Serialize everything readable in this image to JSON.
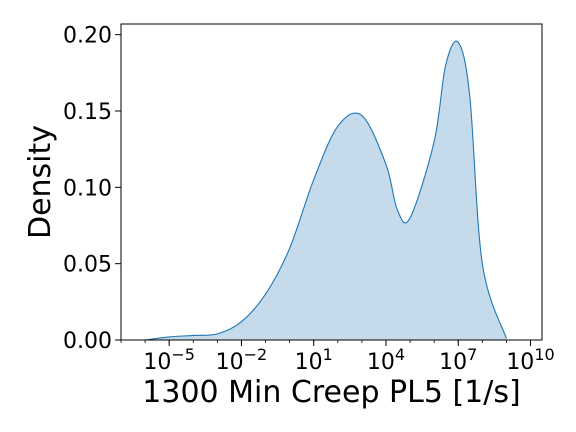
{
  "chart_data": {
    "type": "area",
    "title": "",
    "xlabel": "1300 Min Creep PL5 [1/s]",
    "ylabel": "Density",
    "x_scale": "log10",
    "xlim": [
      1e-07,
      30000000000.0
    ],
    "ylim": [
      0,
      0.207
    ],
    "grid": false,
    "legend": "none",
    "x_ticks": [
      {
        "value": 1e-05,
        "base": "10",
        "exp": "−5"
      },
      {
        "value": 0.01,
        "base": "10",
        "exp": "−2"
      },
      {
        "value": 10,
        "base": "10",
        "exp": "1"
      },
      {
        "value": 10000.0,
        "base": "10",
        "exp": "4"
      },
      {
        "value": 10000000.0,
        "base": "10",
        "exp": "7"
      },
      {
        "value": 10000000000.0,
        "base": "10",
        "exp": "10"
      }
    ],
    "y_ticks": [
      {
        "value": 0.0,
        "label": "0.00"
      },
      {
        "value": 0.05,
        "label": "0.05"
      },
      {
        "value": 0.1,
        "label": "0.10"
      },
      {
        "value": 0.15,
        "label": "0.15"
      },
      {
        "value": 0.2,
        "label": "0.20"
      }
    ],
    "series": [
      {
        "line_color": "#1f77b4",
        "fill_color": "#c5daeb",
        "x": [
          1e-06,
          1e-05,
          0.0001,
          0.001,
          0.01,
          0.1,
          1,
          10,
          100,
          1000,
          10000.0,
          30000.0,
          100000.0,
          1000000.0,
          3000000.0,
          10000000.0,
          30000000.0,
          100000000.0,
          1000000000.0
        ],
        "y": [
          0.0,
          0.002,
          0.003,
          0.004,
          0.012,
          0.03,
          0.06,
          0.105,
          0.14,
          0.147,
          0.115,
          0.085,
          0.08,
          0.13,
          0.18,
          0.195,
          0.16,
          0.05,
          0.001
        ]
      }
    ]
  }
}
